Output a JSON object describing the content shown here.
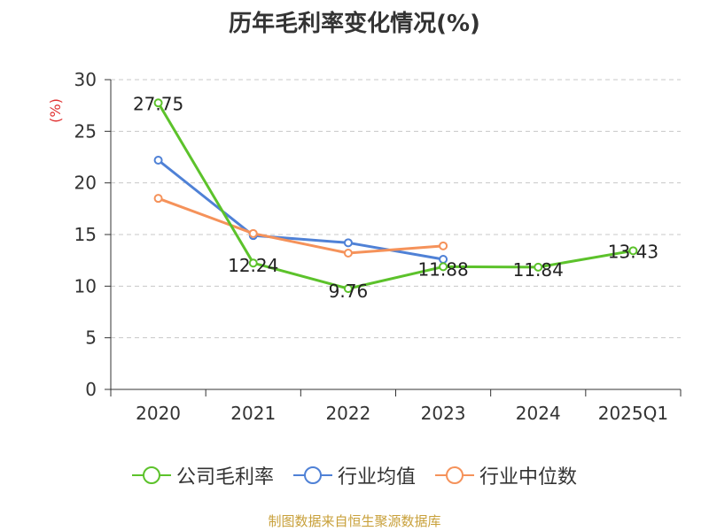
{
  "chart_data": {
    "type": "line",
    "title": "历年毛利率变化情况(%)",
    "ylabel": "(%)",
    "xlabel": "",
    "ylim": [
      0,
      30
    ],
    "yticks": [
      0,
      5,
      10,
      15,
      20,
      25,
      30
    ],
    "categories": [
      "2020",
      "2021",
      "2022",
      "2023",
      "2024",
      "2025Q1"
    ],
    "grid": true,
    "legend_position": "bottom",
    "series": [
      {
        "name": "公司毛利率",
        "color": "#5cc22b",
        "values": [
          27.75,
          12.24,
          9.76,
          11.88,
          11.84,
          13.43
        ],
        "show_labels": true
      },
      {
        "name": "行业均值",
        "color": "#4f81d6",
        "values": [
          22.2,
          14.9,
          14.2,
          12.6,
          null,
          null
        ],
        "show_labels": false
      },
      {
        "name": "行业中位数",
        "color": "#f5925a",
        "values": [
          18.5,
          15.1,
          13.2,
          13.9,
          null,
          null
        ],
        "show_labels": false
      }
    ]
  },
  "footer": {
    "source": "制图数据来自恒生聚源数据库"
  }
}
